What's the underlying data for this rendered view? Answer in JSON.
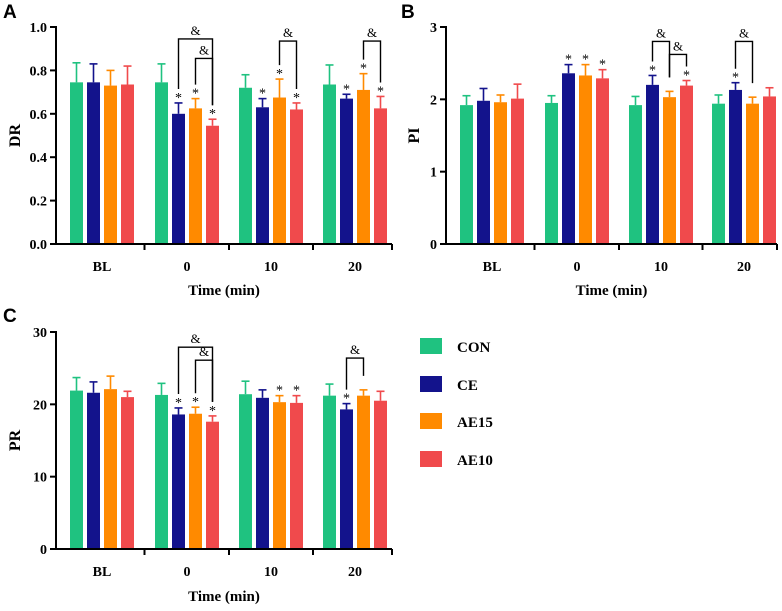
{
  "chart_data": [
    {
      "panel": "A",
      "type": "bar",
      "ylabel": "DR",
      "xlabel": "Time (min)",
      "categories": [
        "BL",
        "0",
        "10",
        "20"
      ],
      "ylim": [
        0,
        1.0
      ],
      "yticks": [
        "0.0",
        "0.2",
        "0.4",
        "0.6",
        "0.8",
        "1.0"
      ],
      "ytick_values": [
        0,
        0.2,
        0.4,
        0.6,
        0.8,
        1.0
      ],
      "series": [
        {
          "name": "CON",
          "values": [
            0.745,
            0.745,
            0.72,
            0.735
          ],
          "errors": [
            0.09,
            0.085,
            0.06,
            0.09
          ]
        },
        {
          "name": "CE",
          "values": [
            0.745,
            0.6,
            0.63,
            0.67
          ],
          "errors": [
            0.085,
            0.05,
            0.04,
            0.02
          ]
        },
        {
          "name": "AE15",
          "values": [
            0.73,
            0.625,
            0.675,
            0.71
          ],
          "errors": [
            0.07,
            0.045,
            0.085,
            0.075
          ]
        },
        {
          "name": "AE10",
          "values": [
            0.735,
            0.545,
            0.62,
            0.625
          ],
          "errors": [
            0.085,
            0.03,
            0.03,
            0.055
          ]
        }
      ],
      "stars": [
        {
          "cat": 1,
          "series": [
            1,
            2,
            3
          ]
        },
        {
          "cat": 2,
          "series": [
            1,
            2,
            3
          ]
        },
        {
          "cat": 3,
          "series": [
            1,
            2,
            3
          ]
        }
      ],
      "brackets": [
        {
          "cat": 1,
          "from": 1,
          "to": 3,
          "level": 0.945
        },
        {
          "cat": 1,
          "from": 2,
          "to": 3,
          "level": 0.855
        },
        {
          "cat": 2,
          "from": 2,
          "to": 3,
          "level": 0.935
        },
        {
          "cat": 3,
          "from": 2,
          "to": 3,
          "level": 0.935
        }
      ],
      "bracket_label": "&"
    },
    {
      "panel": "B",
      "type": "bar",
      "ylabel": "PI",
      "xlabel": "Time (min)",
      "categories": [
        "BL",
        "0",
        "10",
        "20"
      ],
      "ylim": [
        0,
        3
      ],
      "yticks": [
        "0",
        "1",
        "2",
        "3"
      ],
      "ytick_values": [
        0,
        1,
        2,
        3
      ],
      "series": [
        {
          "name": "CON",
          "values": [
            1.92,
            1.95,
            1.92,
            1.94
          ],
          "errors": [
            0.13,
            0.1,
            0.12,
            0.12
          ]
        },
        {
          "name": "CE",
          "values": [
            1.98,
            2.36,
            2.2,
            2.13
          ],
          "errors": [
            0.17,
            0.12,
            0.13,
            0.1
          ]
        },
        {
          "name": "AE15",
          "values": [
            1.96,
            2.33,
            2.03,
            1.94
          ],
          "errors": [
            0.1,
            0.15,
            0.08,
            0.09
          ]
        },
        {
          "name": "AE10",
          "values": [
            2.01,
            2.29,
            2.19,
            2.04
          ],
          "errors": [
            0.2,
            0.12,
            0.07,
            0.12
          ]
        }
      ],
      "stars": [
        {
          "cat": 1,
          "series": [
            1,
            2,
            3
          ]
        },
        {
          "cat": 2,
          "series": [
            1,
            3
          ]
        },
        {
          "cat": 3,
          "series": [
            1
          ]
        }
      ],
      "brackets": [
        {
          "cat": 2,
          "from": 1,
          "to": 2,
          "level": 2.8
        },
        {
          "cat": 2,
          "from": 2,
          "to": 3,
          "level": 2.62
        },
        {
          "cat": 3,
          "from": 1,
          "to": 2,
          "level": 2.8
        }
      ],
      "bracket_label": "&"
    },
    {
      "panel": "C",
      "type": "bar",
      "ylabel": "PR",
      "xlabel": "Time (min)",
      "categories": [
        "BL",
        "0",
        "10",
        "20"
      ],
      "ylim": [
        0,
        30
      ],
      "yticks": [
        "0",
        "10",
        "20",
        "30"
      ],
      "ytick_values": [
        0,
        10,
        20,
        30
      ],
      "series": [
        {
          "name": "CON",
          "values": [
            21.9,
            21.3,
            21.4,
            21.2
          ],
          "errors": [
            1.8,
            1.6,
            1.8,
            1.6
          ]
        },
        {
          "name": "CE",
          "values": [
            21.6,
            18.6,
            20.9,
            19.3
          ],
          "errors": [
            1.5,
            0.9,
            1.1,
            0.8
          ]
        },
        {
          "name": "AE15",
          "values": [
            22.1,
            18.7,
            20.3,
            21.2
          ],
          "errors": [
            1.8,
            0.9,
            0.9,
            0.8
          ]
        },
        {
          "name": "AE10",
          "values": [
            21.0,
            17.6,
            20.2,
            20.5
          ],
          "errors": [
            0.8,
            0.8,
            1.0,
            1.3
          ]
        }
      ],
      "stars": [
        {
          "cat": 1,
          "series": [
            1,
            2,
            3
          ]
        },
        {
          "cat": 2,
          "series": [
            2,
            3
          ]
        },
        {
          "cat": 3,
          "series": [
            1
          ]
        }
      ],
      "brackets": [
        {
          "cat": 1,
          "from": 1,
          "to": 3,
          "level": 27.9
        },
        {
          "cat": 1,
          "from": 2,
          "to": 3,
          "level": 26.1
        },
        {
          "cat": 3,
          "from": 1,
          "to": 2,
          "level": 26.4
        }
      ],
      "bracket_label": "&"
    }
  ],
  "legend": [
    {
      "name": "CON",
      "color": "#1fc280"
    },
    {
      "name": "CE",
      "color": "#13138c"
    },
    {
      "name": "AE15",
      "color": "#ff8a00"
    },
    {
      "name": "AE10",
      "color": "#f04a4c"
    }
  ],
  "star_symbol": "*"
}
